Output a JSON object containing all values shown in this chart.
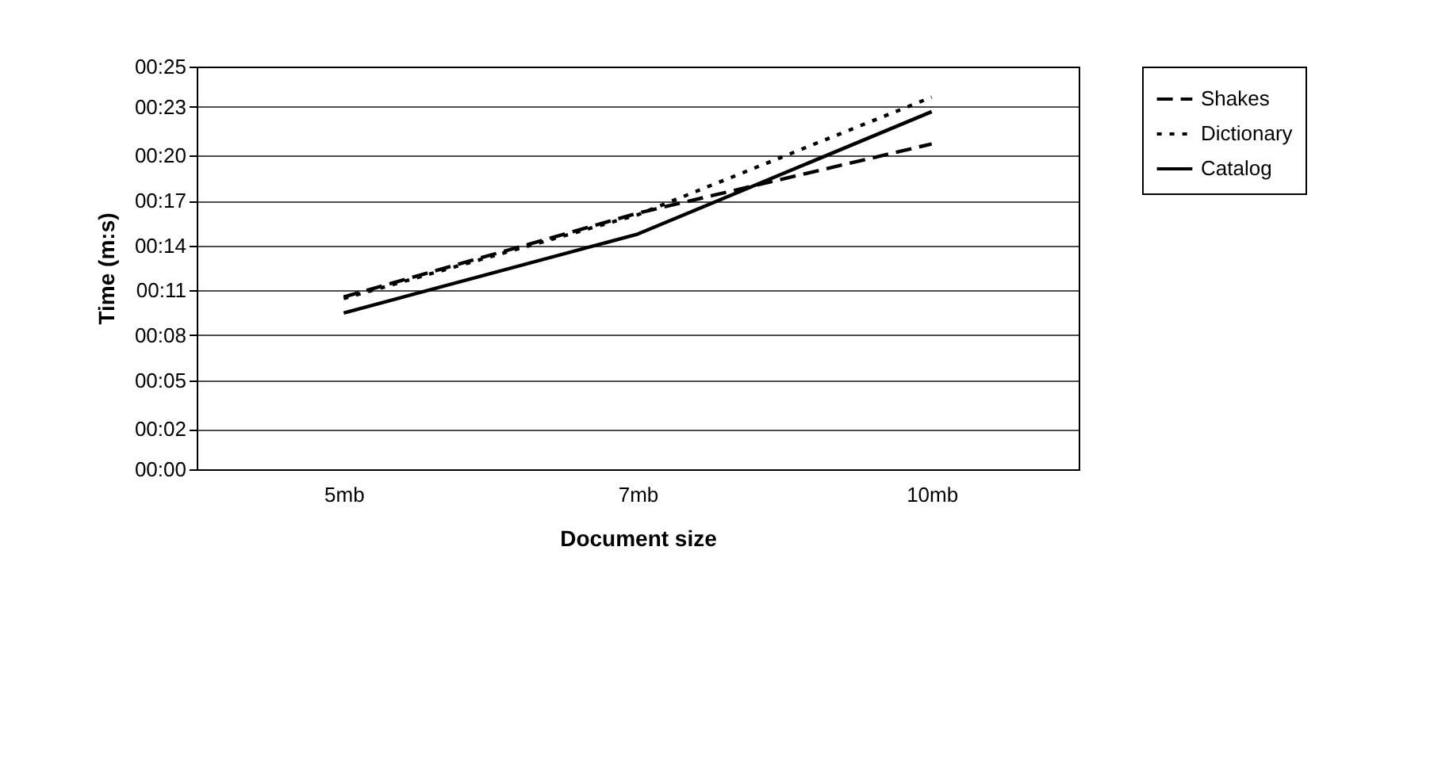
{
  "chart_data": {
    "type": "line",
    "xlabel": "Document size",
    "ylabel": "Time (m:s)",
    "categories": [
      "5mb",
      "7mb",
      "10mb"
    ],
    "series": [
      {
        "name": "Shakes",
        "color": "#000000",
        "line_style": "dashed",
        "values": [
          10.7,
          15.9,
          20.2
        ]
      },
      {
        "name": "Dictionary",
        "color": "#000000",
        "line_style": "dotted",
        "values": [
          10.6,
          15.8,
          23.1
        ]
      },
      {
        "name": "Catalog",
        "color": "#000000",
        "line_style": "solid",
        "values": [
          9.7,
          14.6,
          22.2
        ]
      }
    ],
    "ylim": [
      0,
      25
    ],
    "yticks": [
      {
        "value": 0,
        "label": "00:00"
      },
      {
        "value": 2.49,
        "label": "00:02"
      },
      {
        "value": 5.49,
        "label": "00:05"
      },
      {
        "value": 8.33,
        "label": "00:08"
      },
      {
        "value": 11.11,
        "label": "00:11"
      },
      {
        "value": 13.89,
        "label": "00:14"
      },
      {
        "value": 16.67,
        "label": "00:17"
      },
      {
        "value": 19.51,
        "label": "00:20"
      },
      {
        "value": 22.51,
        "label": "00:23"
      },
      {
        "value": 25,
        "label": "00:25"
      }
    ],
    "grid": "y",
    "legend": "right",
    "marker": "none"
  }
}
